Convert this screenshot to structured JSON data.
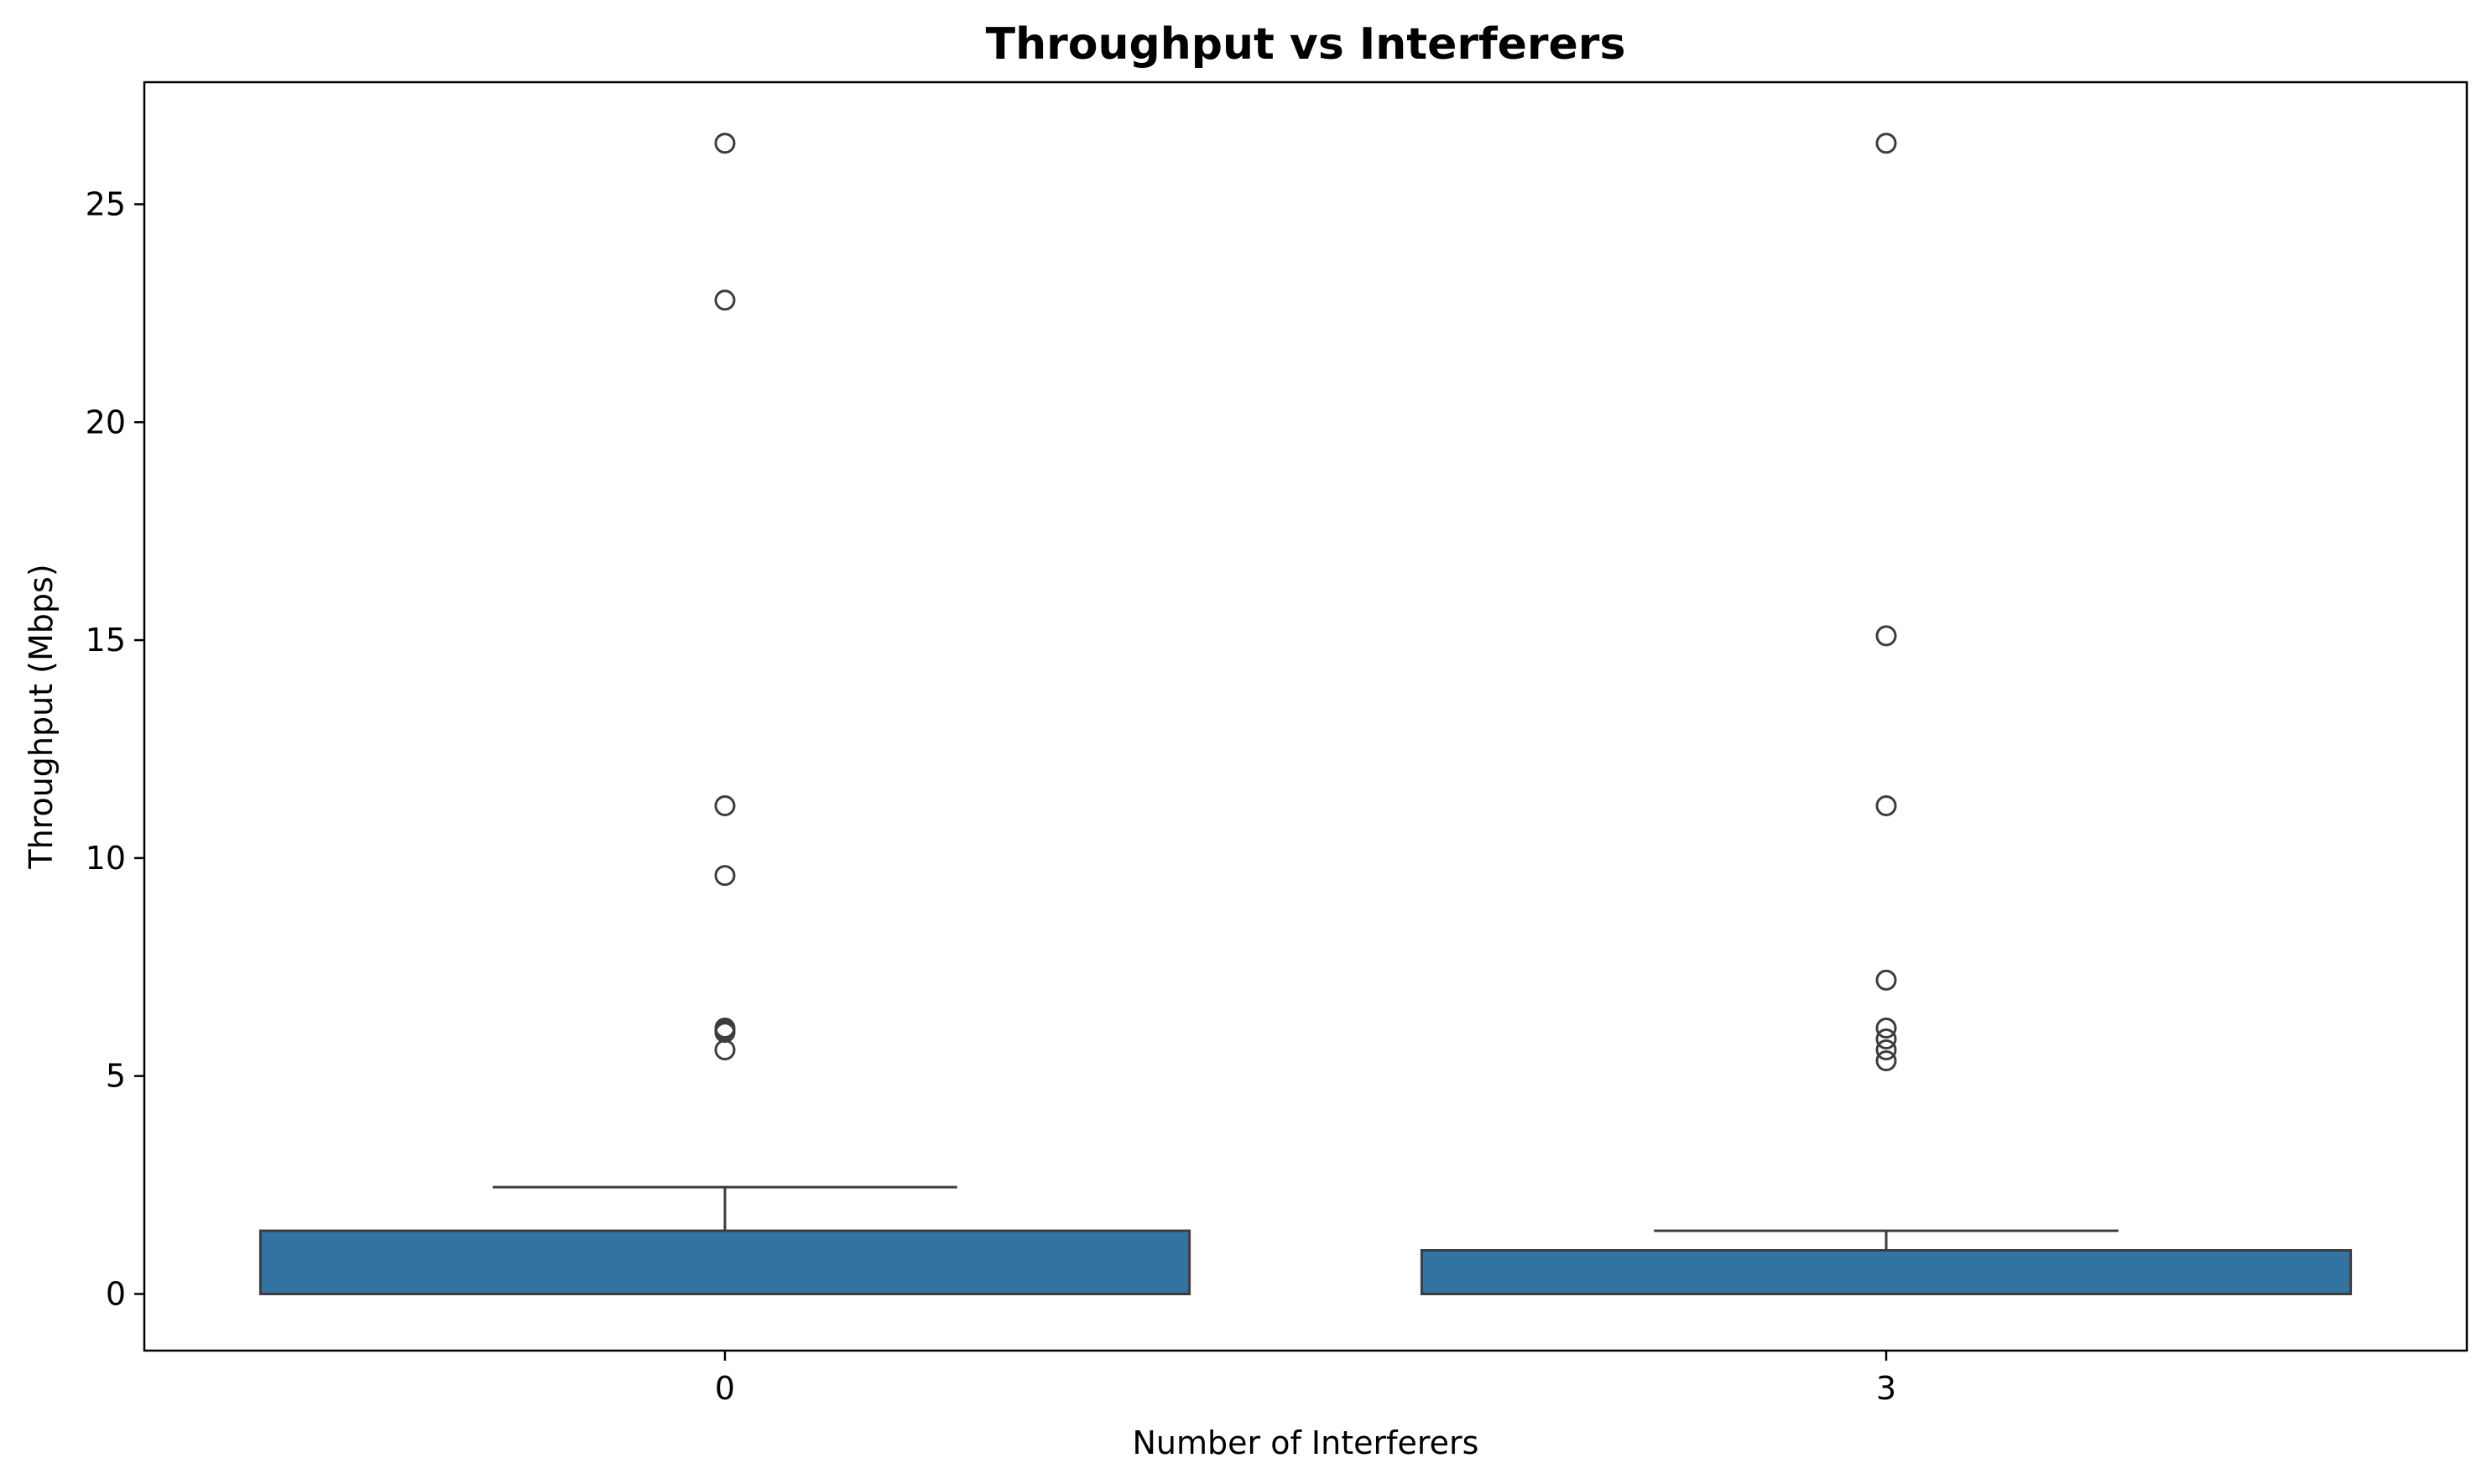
{
  "chart_data": {
    "type": "box",
    "title": "Throughput vs Interferers",
    "xlabel": "Number of Interferers",
    "ylabel": "Throughput (Mbps)",
    "categories": [
      "0",
      "3"
    ],
    "ylim": [
      -1.3,
      27.8
    ],
    "yticks": [
      0,
      5,
      10,
      15,
      20,
      25
    ],
    "grid": false,
    "box_color": "#3274a1",
    "edge_color": "#3d3d3d",
    "boxes": [
      {
        "category": "0",
        "whisker_low": 0,
        "q1": 0,
        "median": 0,
        "q3": 1.45,
        "whisker_high": 2.45,
        "outliers": [
          5.6,
          6.0,
          6.05,
          6.1,
          9.6,
          11.2,
          22.8,
          26.4
        ]
      },
      {
        "category": "3",
        "whisker_low": 0,
        "q1": 0,
        "median": 0,
        "q3": 1.0,
        "whisker_high": 1.45,
        "outliers": [
          5.35,
          5.6,
          5.85,
          6.1,
          7.2,
          11.2,
          15.1,
          26.4
        ]
      }
    ]
  }
}
